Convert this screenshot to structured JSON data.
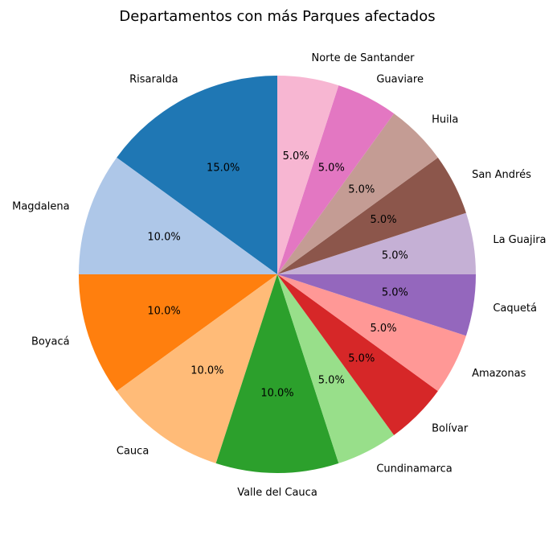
{
  "chart_data": {
    "type": "pie",
    "title": "Departamentos con más Parques afectados",
    "start_angle_deg": 90,
    "direction": "counterclockwise",
    "slices": [
      {
        "label": "Risaralda",
        "value": 15.0,
        "pct_label": "15.0%",
        "color": "#1f77b4"
      },
      {
        "label": "Magdalena",
        "value": 10.0,
        "pct_label": "10.0%",
        "color": "#aec7e8"
      },
      {
        "label": "Boyacá",
        "value": 10.0,
        "pct_label": "10.0%",
        "color": "#ff7f0e"
      },
      {
        "label": "Cauca",
        "value": 10.0,
        "pct_label": "10.0%",
        "color": "#ffbb78"
      },
      {
        "label": "Valle del Cauca",
        "value": 10.0,
        "pct_label": "10.0%",
        "color": "#2ca02c"
      },
      {
        "label": "Cundinamarca",
        "value": 5.0,
        "pct_label": "5.0%",
        "color": "#98df8a"
      },
      {
        "label": "Bolívar",
        "value": 5.0,
        "pct_label": "5.0%",
        "color": "#d62728"
      },
      {
        "label": "Amazonas",
        "value": 5.0,
        "pct_label": "5.0%",
        "color": "#ff9896"
      },
      {
        "label": "Caquetá",
        "value": 5.0,
        "pct_label": "5.0%",
        "color": "#9467bd"
      },
      {
        "label": "La Guajira",
        "value": 5.0,
        "pct_label": "5.0%",
        "color": "#c5b0d5"
      },
      {
        "label": "San Andrés",
        "value": 5.0,
        "pct_label": "5.0%",
        "color": "#8c564b"
      },
      {
        "label": "Huila",
        "value": 5.0,
        "pct_label": "5.0%",
        "color": "#c49c94"
      },
      {
        "label": "Guaviare",
        "value": 5.0,
        "pct_label": "5.0%",
        "color": "#e377c2"
      },
      {
        "label": "Norte de Santander",
        "value": 5.0,
        "pct_label": "5.0%",
        "color": "#f7b6d2"
      }
    ]
  }
}
